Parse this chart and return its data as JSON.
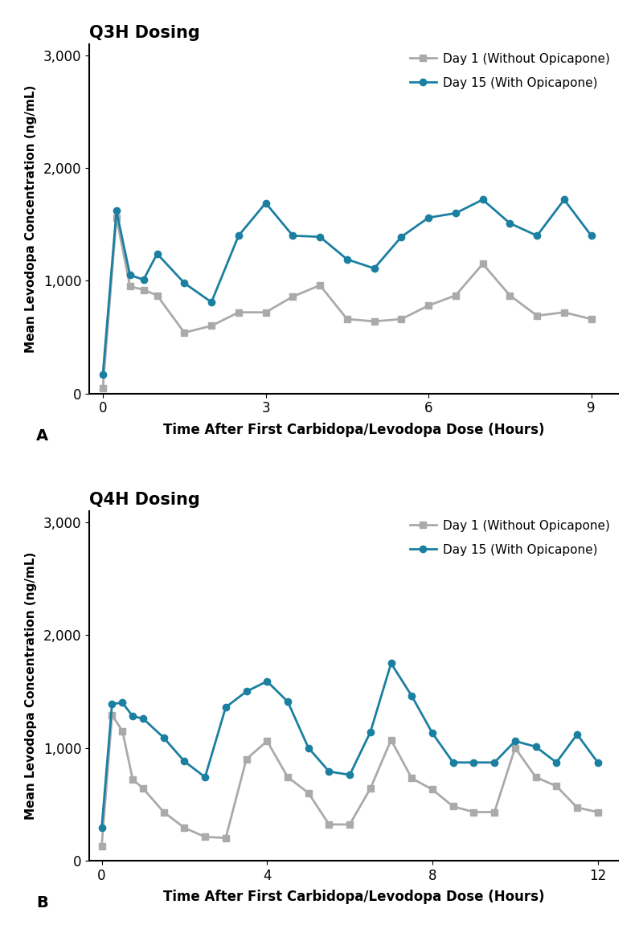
{
  "panel_A_title": "Q3H Dosing",
  "panel_B_title": "Q4H Dosing",
  "label_A": "A",
  "label_B": "B",
  "xlabel": "Time After First Carbidopa/Levodopa Dose (Hours)",
  "ylabel": "Mean Levodopa Concentration (ng/mL)",
  "day1_label": "Day 1 (Without Opicapone)",
  "day15_label": "Day 15 (With Opicapone)",
  "day1_color": "#aaaaaa",
  "day15_color": "#1a7fa0",
  "line_width": 2.0,
  "marker_size": 6,
  "A_xlim": [
    -0.25,
    9.5
  ],
  "A_xticks": [
    0,
    3,
    6,
    9
  ],
  "B_xlim": [
    -0.3,
    12.5
  ],
  "B_xticks": [
    0,
    4,
    8,
    12
  ],
  "ylim": [
    0,
    3100
  ],
  "yticks": [
    0,
    1000,
    2000,
    3000
  ],
  "ytick_labels": [
    "0",
    "1,000",
    "2,000",
    "3,000"
  ],
  "A_day1_x": [
    0,
    0.25,
    0.5,
    0.75,
    1.0,
    1.5,
    2.0,
    2.5,
    3.0,
    3.5,
    4.0,
    4.5,
    5.0,
    5.5,
    6.0,
    6.5,
    7.0,
    7.5,
    8.0,
    8.5,
    9.0
  ],
  "A_day1_y": [
    50,
    1560,
    950,
    920,
    870,
    540,
    600,
    720,
    720,
    860,
    960,
    660,
    640,
    660,
    780,
    870,
    1150,
    870,
    690,
    720,
    660
  ],
  "A_day15_x": [
    0,
    0.25,
    0.5,
    0.75,
    1.0,
    1.5,
    2.0,
    2.5,
    3.0,
    3.5,
    4.0,
    4.5,
    5.0,
    5.5,
    6.0,
    6.5,
    7.0,
    7.5,
    8.0,
    8.5,
    9.0
  ],
  "A_day15_y": [
    170,
    1620,
    1050,
    1010,
    1240,
    980,
    810,
    1400,
    1690,
    1400,
    1390,
    1190,
    1110,
    1390,
    1560,
    1600,
    1720,
    1510,
    1400,
    1720,
    1400
  ],
  "B_day1_x": [
    0,
    0.25,
    0.5,
    0.75,
    1.0,
    1.5,
    2.0,
    2.5,
    3.0,
    3.5,
    4.0,
    4.5,
    5.0,
    5.5,
    6.0,
    6.5,
    7.0,
    7.5,
    8.0,
    8.5,
    9.0,
    9.5,
    10.0,
    10.5,
    11.0,
    11.5,
    12.0
  ],
  "B_day1_y": [
    130,
    1290,
    1150,
    720,
    640,
    430,
    290,
    210,
    200,
    900,
    1060,
    740,
    600,
    320,
    320,
    640,
    1070,
    730,
    630,
    480,
    430,
    430,
    1000,
    740,
    660,
    470,
    430
  ],
  "B_day15_x": [
    0,
    0.25,
    0.5,
    0.75,
    1.0,
    1.5,
    2.0,
    2.5,
    3.0,
    3.5,
    4.0,
    4.5,
    5.0,
    5.5,
    6.0,
    6.5,
    7.0,
    7.5,
    8.0,
    8.5,
    9.0,
    9.5,
    10.0,
    10.5,
    11.0,
    11.5,
    12.0
  ],
  "B_day15_y": [
    290,
    1390,
    1400,
    1280,
    1260,
    1090,
    880,
    740,
    1360,
    1500,
    1590,
    1410,
    1000,
    790,
    760,
    1140,
    1750,
    1460,
    1130,
    870,
    870,
    870,
    1060,
    1010,
    870,
    1120,
    870
  ]
}
